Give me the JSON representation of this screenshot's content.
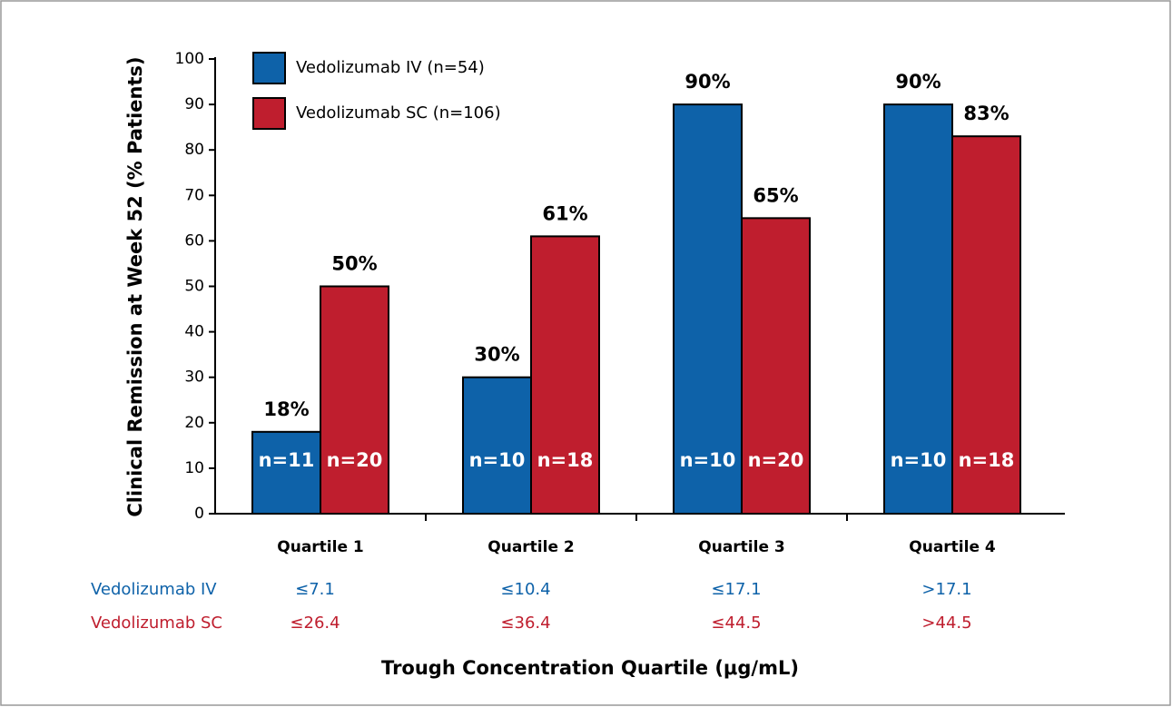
{
  "chart_data": {
    "type": "bar",
    "y_label": "Clinical Remission at Week 52 (% Patients)",
    "x_label": "Trough Concentration Quartile (μg/mL)",
    "categories": [
      "Quartile 1",
      "Quartile 2",
      "Quartile 3",
      "Quartile 4"
    ],
    "series": [
      {
        "name": "Vedolizumab IV (n=54)",
        "color": "#0e62a9",
        "values": [
          18,
          30,
          90,
          90
        ],
        "value_labels": [
          "18%",
          "30%",
          "90%",
          "90%"
        ],
        "n_labels": [
          "n=11",
          "n=10",
          "n=10",
          "n=10"
        ]
      },
      {
        "name": "Vedolizumab SC (n=106)",
        "color": "#bf1e2e",
        "values": [
          50,
          61,
          65,
          83
        ],
        "value_labels": [
          "50%",
          "61%",
          "65%",
          "83%"
        ],
        "n_labels": [
          "n=20",
          "n=18",
          "n=20",
          "n=18"
        ]
      }
    ],
    "quartile_ranges": [
      {
        "name": "Vedolizumab IV",
        "color": "#0e62a9",
        "labels": [
          "≤7.1",
          "≤10.4",
          "≤17.1",
          ">17.1"
        ]
      },
      {
        "name": "Vedolizumab SC",
        "color": "#bf1e2e",
        "labels": [
          "≤26.4",
          "≤36.4",
          "≤44.5",
          ">44.5"
        ]
      }
    ],
    "ylim": [
      0,
      100
    ],
    "yticks": [
      0,
      10,
      20,
      30,
      40,
      50,
      60,
      70,
      80,
      90,
      100
    ],
    "legend": "top-left"
  }
}
